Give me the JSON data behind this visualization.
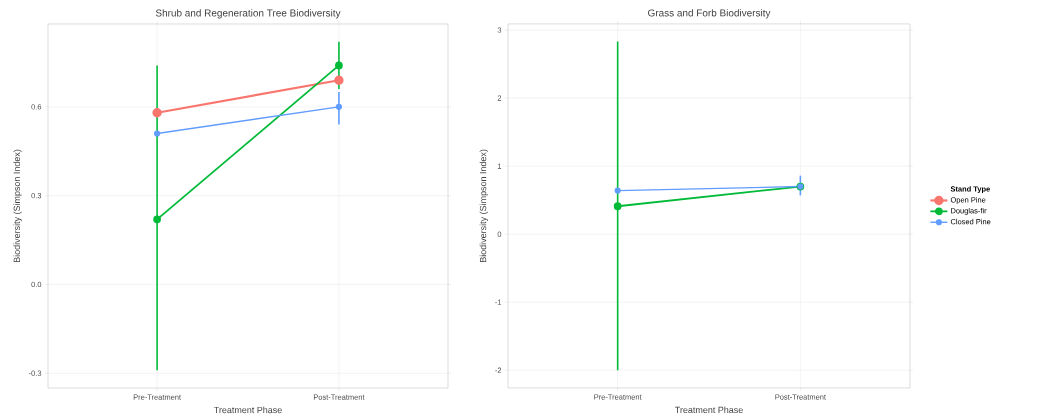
{
  "chart_data": [
    {
      "type": "line",
      "title": "Shrub and Regeneration Tree Biodiversity",
      "xlabel": "Treatment Phase",
      "ylabel": "Biodiversity (Simpson Index)",
      "categories": [
        "Pre-Treatment",
        "Post-Treatment"
      ],
      "ylim": [
        -0.35,
        0.88
      ],
      "yticks": [
        -0.3,
        {
          "value": 0,
          "label": "0.0"
        },
        0.3,
        0.6
      ],
      "grid": true,
      "marker": "circle",
      "legend": false,
      "series": [
        {
          "color": "#F8766D",
          "values": [
            0.58,
            0.69
          ]
        },
        {
          "color": "#00BA38",
          "values": [
            0.22,
            0.74
          ],
          "errors": [
            [
              -0.29,
              0.74
            ],
            [
              0.66,
              0.82
            ]
          ]
        },
        {
          "color": "#619CFF",
          "values": [
            0.51,
            0.6
          ],
          "errors": [
            null,
            [
              0.54,
              0.65
            ]
          ]
        }
      ]
    },
    {
      "type": "line",
      "title": "Grass and Forb Biodiversity",
      "xlabel": "Treatment Phase",
      "ylabel": "Biodiversity (Simpson Index)",
      "categories": [
        "Pre-Treatment",
        "Post-Treatment"
      ],
      "ylim": [
        -2.26,
        3.09
      ],
      "yticks": [
        -2,
        -1,
        0,
        1,
        2,
        3
      ],
      "grid": true,
      "marker": "circle",
      "legend": "right",
      "legend_title": "Stand Type",
      "series": [
        {
          "name": "Open Pine",
          "color": "#F8766D",
          "values": [
            null,
            null
          ]
        },
        {
          "name": "Douglas-fir",
          "color": "#00BA38",
          "values": [
            0.41,
            0.7
          ],
          "errors": [
            [
              -2.0,
              2.83
            ],
            null
          ]
        },
        {
          "name": "Closed Pine",
          "color": "#619CFF",
          "values": [
            0.64,
            0.7
          ],
          "errors": [
            null,
            [
              0.57,
              0.86
            ]
          ]
        }
      ]
    }
  ]
}
